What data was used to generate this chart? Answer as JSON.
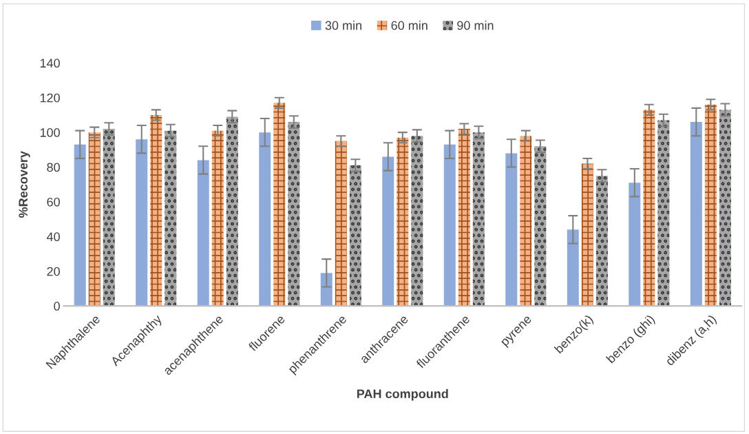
{
  "chart_data": {
    "type": "bar",
    "xlabel": "PAH compound",
    "ylabel": "%Recovery",
    "categories": [
      "Naphthalene",
      "Acenaphthy",
      "acenaphthene",
      "fluorene",
      "phenanthrene",
      "anthracene",
      "fluoranthene",
      "pyrene",
      "benzo(k)",
      "benzo (ghi)",
      "dibenz (a,h)"
    ],
    "series": [
      {
        "name": "30 min",
        "color": "#8eaadb",
        "values": [
          93,
          96,
          84,
          100,
          19,
          86,
          93,
          88,
          44,
          71,
          106
        ],
        "errors": [
          8,
          8,
          8,
          8,
          8,
          8,
          8,
          8,
          8,
          8,
          8
        ]
      },
      {
        "name": "60 min",
        "color": "#f4b183",
        "values": [
          100,
          110,
          101,
          117,
          95,
          97,
          102,
          98,
          82,
          113,
          116
        ],
        "errors": [
          3,
          3,
          3,
          3,
          3,
          3,
          3,
          3,
          3,
          3,
          3
        ]
      },
      {
        "name": "90 min",
        "color": "#a6a6a6",
        "values": [
          102,
          101,
          109,
          106,
          81,
          98,
          100,
          92,
          75,
          107,
          113
        ],
        "errors": [
          3.5,
          3.5,
          3.5,
          3.5,
          3.5,
          3.5,
          3.5,
          3.5,
          3.5,
          3.5,
          3.5
        ]
      }
    ],
    "ylim": [
      0,
      140
    ],
    "yticks": [
      0,
      20,
      40,
      60,
      80,
      100,
      120,
      140
    ],
    "grid": false,
    "legend": "top"
  }
}
